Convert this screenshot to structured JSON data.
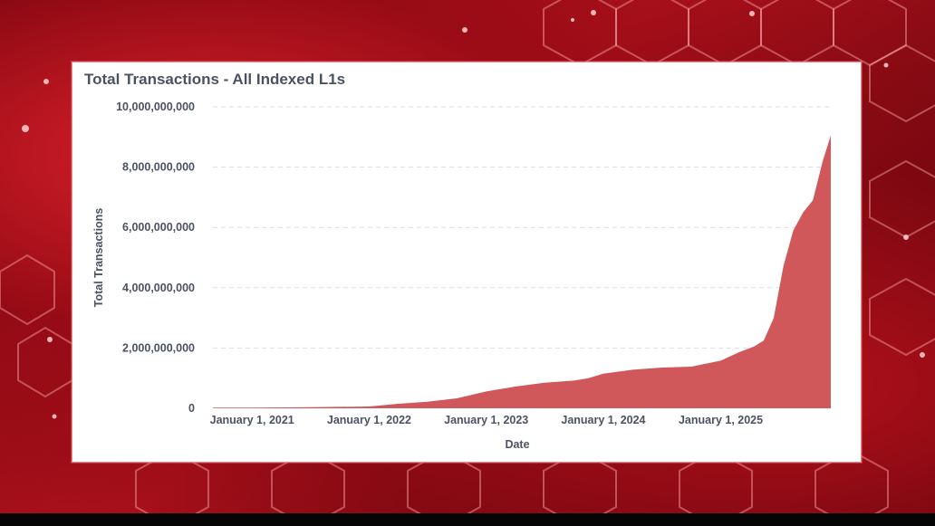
{
  "page": {
    "background_color": "#a50f19",
    "accent_color": "#d0585a"
  },
  "chart_data": {
    "type": "area",
    "title": "Total Transactions - All Indexed L1s",
    "xlabel": "Date",
    "ylabel": "Total Transactions",
    "ylim": [
      0,
      10000000000
    ],
    "yticks": [
      0,
      2000000000,
      4000000000,
      6000000000,
      8000000000,
      10000000000
    ],
    "ytick_labels": [
      "0",
      "2,000,000,000",
      "4,000,000,000",
      "6,000,000,000",
      "8,000,000,000",
      "10,000,000,000"
    ],
    "xlim": [
      "2020-09-01",
      "2025-12-10"
    ],
    "xticks": [
      "2021-01-01",
      "2022-01-01",
      "2023-01-01",
      "2024-01-01",
      "2025-01-01"
    ],
    "xtick_labels": [
      "January 1, 2021",
      "January 1, 2022",
      "January 1, 2023",
      "January 1, 2024",
      "January 1, 2025"
    ],
    "grid": "horizontal dashed",
    "color": "#d0585a",
    "series": [
      {
        "x": [
          "2020-09-01",
          "2021-01-01",
          "2021-07-01",
          "2022-01-01",
          "2022-04-01",
          "2022-07-01",
          "2022-10-01",
          "2023-01-01",
          "2023-04-01",
          "2023-07-01",
          "2023-10-01",
          "2023-11-15",
          "2024-01-01",
          "2024-04-01",
          "2024-07-01",
          "2024-10-01",
          "2025-01-01",
          "2025-03-01",
          "2025-04-15",
          "2025-05-15",
          "2025-06-15",
          "2025-07-15",
          "2025-08-15",
          "2025-09-15",
          "2025-10-15",
          "2025-11-15",
          "2025-12-10"
        ],
        "y": [
          20000000,
          25000000,
          35000000,
          60000000,
          150000000,
          220000000,
          330000000,
          560000000,
          720000000,
          850000000,
          920000000,
          1000000000,
          1150000000,
          1280000000,
          1350000000,
          1380000000,
          1580000000,
          1870000000,
          2050000000,
          2250000000,
          3000000000,
          4700000000,
          5900000000,
          6500000000,
          6900000000,
          8200000000,
          9050000000
        ]
      }
    ]
  }
}
